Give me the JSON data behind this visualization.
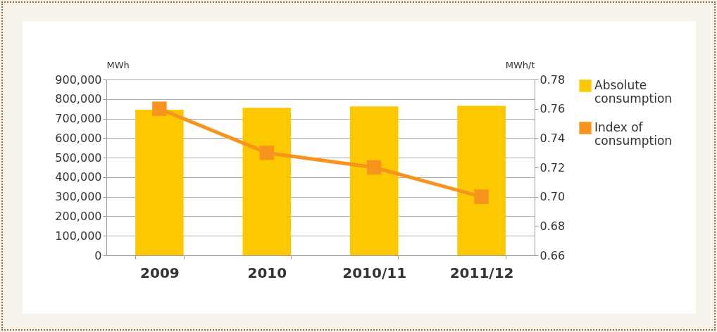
{
  "chart_data": {
    "type": "bar",
    "categories": [
      "2009",
      "2010",
      "2010/11",
      "2011/12"
    ],
    "series": [
      {
        "name": "Absolute consumption",
        "color": "#fcc800",
        "values": [
          745000,
          755000,
          762000,
          765000
        ]
      },
      {
        "name": "Index of consumption",
        "type": "line",
        "axis": "y2",
        "color": "#f7941d",
        "values": [
          0.76,
          0.73,
          0.72,
          0.7
        ]
      }
    ],
    "ylabel": "MWh",
    "y2label": "MWh/t",
    "ylim": [
      0,
      900000
    ],
    "yticks": [
      0,
      {
        "value": 100000,
        "label": "100,000"
      },
      {
        "value": 200000,
        "label": "200,000"
      },
      {
        "value": 300000,
        "label": "300,000"
      },
      {
        "value": 400000,
        "label": "400,000"
      },
      {
        "value": 500000,
        "label": "500,000"
      },
      {
        "value": 600000,
        "label": "600,000"
      },
      {
        "value": 700000,
        "label": "700,000"
      },
      {
        "value": 800000,
        "label": "800,000"
      },
      {
        "value": 900000,
        "label": "900,000"
      }
    ],
    "y2lim": [
      0.66,
      0.78
    ],
    "y2ticks": [
      0.66,
      0.68,
      {
        "value": 0.7,
        "label": "0.70"
      },
      0.72,
      0.74,
      0.76,
      0.78
    ],
    "grid": "y",
    "legend": "right",
    "marker": "square"
  }
}
